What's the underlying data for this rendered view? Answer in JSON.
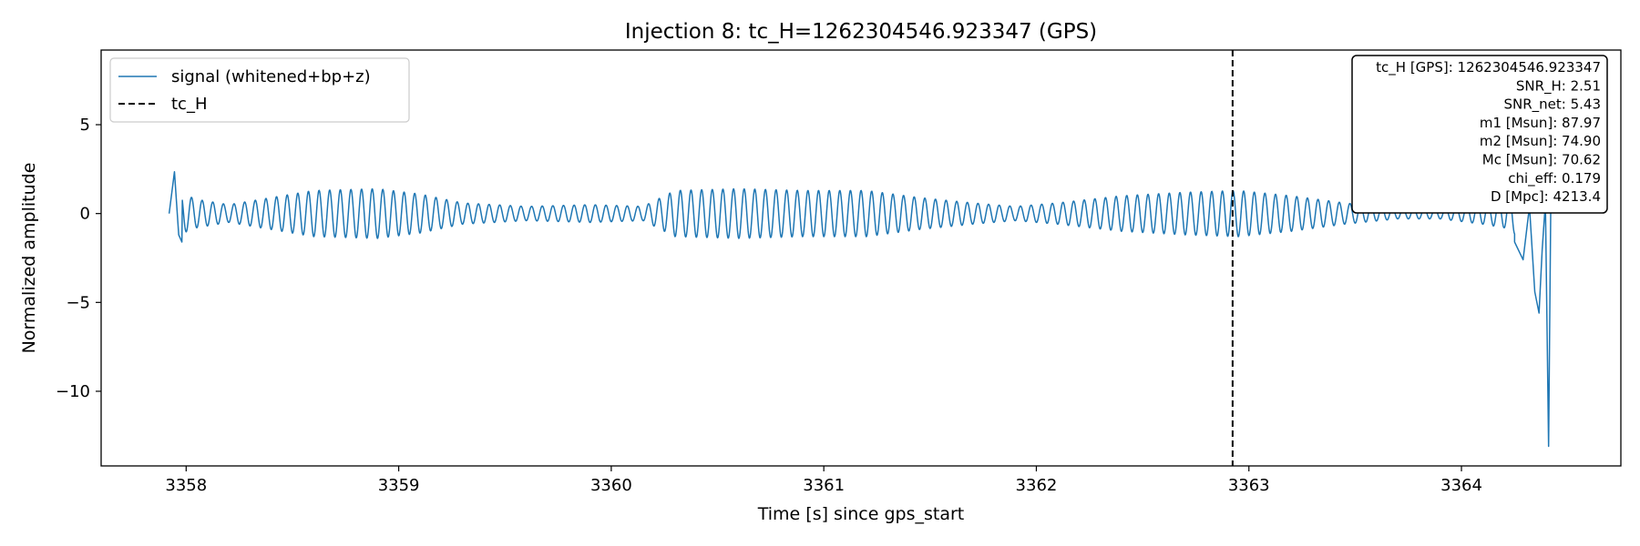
{
  "chart_data": {
    "type": "line",
    "title": "Injection 8: tc_H=1262304546.923347 (GPS)",
    "xlabel": "Time [s] since gps_start",
    "ylabel": "Normalized amplitude",
    "xlim": [
      3357.6,
      3364.75
    ],
    "ylim": [
      -14.2,
      9.2
    ],
    "xticks": [
      3358,
      3359,
      3360,
      3361,
      3362,
      3363,
      3364
    ],
    "yticks": [
      5,
      0,
      -5,
      -10
    ],
    "ytick_labels": [
      "5",
      "0",
      "−5",
      "−10"
    ],
    "legend_position": "upper left",
    "grid": false,
    "series": [
      {
        "name": "signal (whitened+bp+z)",
        "color": "#1f77b4",
        "linestyle": "solid",
        "x_start": 3357.92,
        "x_end": 3364.42,
        "oscillation_frequency_hz": 20,
        "envelope_keypoints": [
          [
            3357.92,
            1.4
          ],
          [
            3358.05,
            0.8
          ],
          [
            3358.2,
            0.5
          ],
          [
            3358.4,
            0.9
          ],
          [
            3358.6,
            1.3
          ],
          [
            3358.9,
            1.4
          ],
          [
            3359.1,
            1.1
          ],
          [
            3359.3,
            0.6
          ],
          [
            3359.6,
            0.4
          ],
          [
            3359.9,
            0.5
          ],
          [
            3360.15,
            0.4
          ],
          [
            3360.3,
            1.3
          ],
          [
            3360.6,
            1.4
          ],
          [
            3360.9,
            1.3
          ],
          [
            3361.2,
            1.3
          ],
          [
            3361.45,
            0.9
          ],
          [
            3361.7,
            0.6
          ],
          [
            3361.9,
            0.4
          ],
          [
            3362.1,
            0.6
          ],
          [
            3362.4,
            1.0
          ],
          [
            3362.7,
            1.2
          ],
          [
            3362.95,
            1.3
          ],
          [
            3363.2,
            1.0
          ],
          [
            3363.45,
            0.6
          ],
          [
            3363.7,
            0.3
          ],
          [
            3363.9,
            0.3
          ],
          [
            3364.1,
            0.6
          ],
          [
            3364.2,
            0.8
          ],
          [
            3364.3,
            1.5
          ]
        ],
        "spikes": [
          [
            3357.92,
            0.0
          ],
          [
            3357.945,
            2.35
          ],
          [
            3357.965,
            -1.2
          ],
          [
            3357.98,
            -1.6
          ],
          [
            3364.25,
            -1.6
          ],
          [
            3364.29,
            -2.6
          ],
          [
            3364.32,
            0.4
          ],
          [
            3364.345,
            -4.4
          ],
          [
            3364.365,
            -5.6
          ],
          [
            3364.38,
            -2.0
          ],
          [
            3364.395,
            0.6
          ],
          [
            3364.41,
            -13.1
          ],
          [
            3364.42,
            0.2
          ]
        ]
      },
      {
        "name": "tc_H",
        "color": "#000000",
        "linestyle": "dashed",
        "x": 3362.923347
      }
    ],
    "info_box": {
      "position": "upper right",
      "lines": [
        "tc_H [GPS]: 1262304546.923347",
        "SNR_H: 2.51",
        "SNR_net: 5.43",
        "m1 [Msun]: 87.97",
        "m2 [Msun]: 74.90",
        "Mc [Msun]: 70.62",
        "chi_eff: 0.179",
        "D [Mpc]: 4213.4"
      ]
    }
  }
}
